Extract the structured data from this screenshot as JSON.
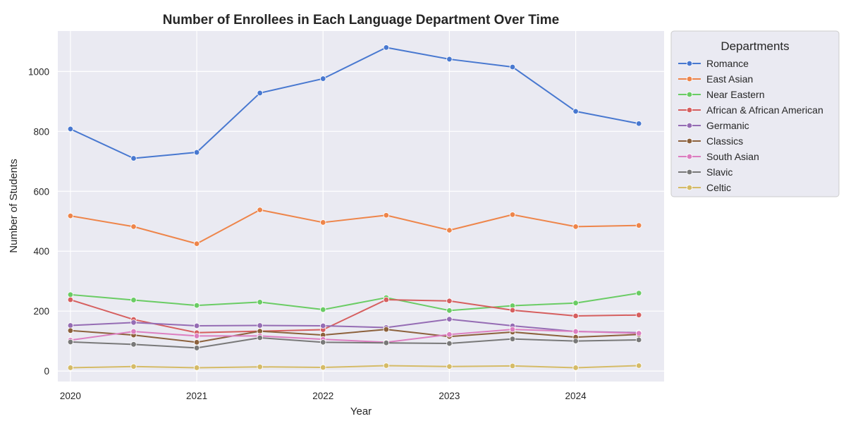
{
  "chart_data": {
    "type": "line",
    "title": "Number of Enrollees in Each Language Department Over Time",
    "xlabel": "Year",
    "ylabel": "Number of Students",
    "xlim": [
      2019.9,
      2024.7
    ],
    "ylim": [
      -35,
      1135
    ],
    "x_ticks": [
      2020,
      2021,
      2022,
      2023,
      2024
    ],
    "y_ticks": [
      0,
      200,
      400,
      600,
      800,
      1000
    ],
    "grid": true,
    "legend": {
      "title": "Departments",
      "placement": "outside-right"
    },
    "x": [
      2020,
      2020.5,
      2021,
      2021.5,
      2022,
      2022.5,
      2023,
      2023.5,
      2024,
      2024.5
    ],
    "series": [
      {
        "name": "Romance",
        "color": "#4878d0",
        "values": [
          808,
          710,
          730,
          928,
          976,
          1080,
          1041,
          1015,
          867,
          826
        ]
      },
      {
        "name": "East Asian",
        "color": "#ee854a",
        "values": [
          518,
          482,
          425,
          538,
          496,
          520,
          470,
          522,
          482,
          486
        ]
      },
      {
        "name": "Near Eastern",
        "color": "#6acc64",
        "values": [
          255,
          237,
          219,
          230,
          205,
          245,
          202,
          218,
          227,
          260
        ]
      },
      {
        "name": "African & African American",
        "color": "#d65f5f",
        "values": [
          238,
          172,
          128,
          133,
          138,
          238,
          234,
          203,
          184,
          187
        ]
      },
      {
        "name": "Germanic",
        "color": "#956cb4",
        "values": [
          152,
          162,
          151,
          152,
          151,
          145,
          173,
          151,
          132,
          128
        ]
      },
      {
        "name": "Classics",
        "color": "#8c613c",
        "values": [
          135,
          120,
          96,
          133,
          120,
          139,
          115,
          130,
          113,
          122
        ]
      },
      {
        "name": "South Asian",
        "color": "#dc7ec0",
        "values": [
          103,
          132,
          117,
          117,
          106,
          96,
          122,
          139,
          132,
          126
        ]
      },
      {
        "name": "Slavic",
        "color": "#797979",
        "values": [
          97,
          89,
          77,
          111,
          96,
          94,
          92,
          107,
          100,
          104
        ]
      },
      {
        "name": "Celtic",
        "color": "#d5bb67",
        "values": [
          11,
          15,
          11,
          14,
          12,
          18,
          15,
          17,
          11,
          18
        ]
      }
    ]
  }
}
